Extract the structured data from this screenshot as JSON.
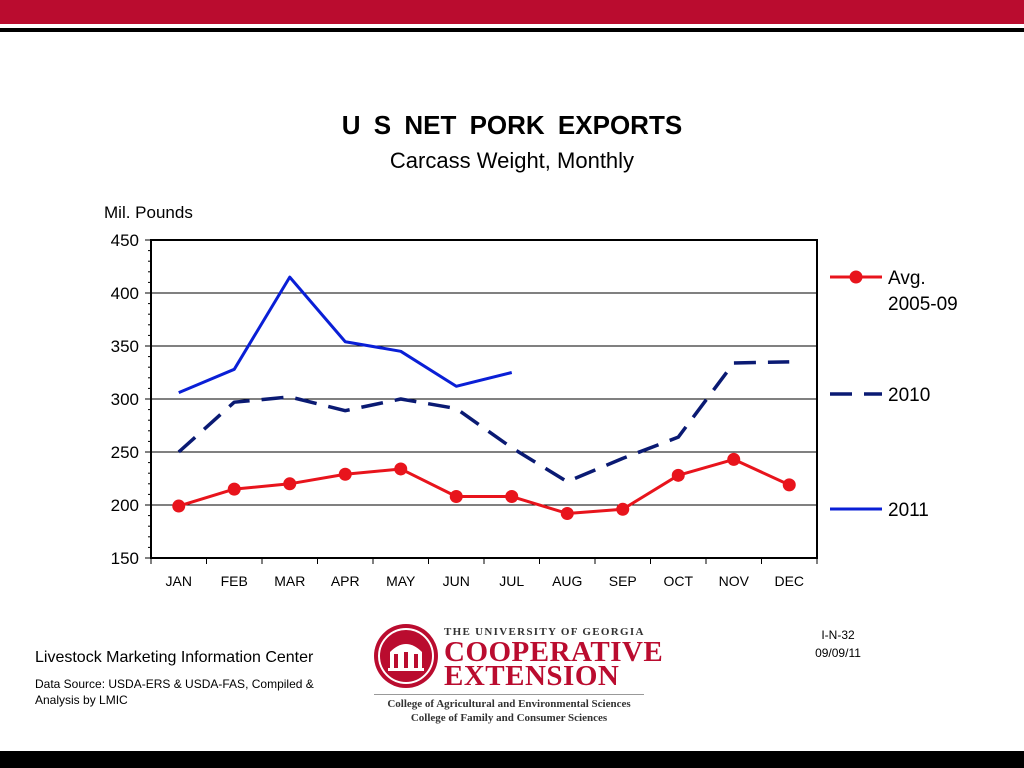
{
  "chart_data": {
    "type": "line",
    "title": "U S  NET  PORK  EXPORTS",
    "subtitle": "Carcass Weight, Monthly",
    "ylabel": "Mil. Pounds",
    "ylim": [
      150,
      450
    ],
    "yticks": [
      "150",
      "200",
      "250",
      "300",
      "350",
      "400",
      "450"
    ],
    "categories": [
      "JAN",
      "FEB",
      "MAR",
      "APR",
      "MAY",
      "JUN",
      "JUL",
      "AUG",
      "SEP",
      "OCT",
      "NOV",
      "DEC"
    ],
    "grid": true,
    "legend_position": "right",
    "series": [
      {
        "name": "Avg. 2005-09",
        "legend_lines": [
          "Avg.",
          "2005-09"
        ],
        "color": "#e8141c",
        "style": "solid-markers",
        "values": [
          199,
          215,
          220,
          229,
          234,
          208,
          208,
          192,
          196,
          228,
          243,
          219
        ]
      },
      {
        "name": "2010",
        "legend_lines": [
          "2010"
        ],
        "color": "#0a1a73",
        "style": "dashed",
        "values": [
          250,
          297,
          302,
          289,
          300,
          291,
          254,
          222,
          244,
          264,
          334,
          335
        ]
      },
      {
        "name": "2011",
        "legend_lines": [
          "2011"
        ],
        "color": "#0a1fd6",
        "style": "solid",
        "values": [
          306,
          328,
          415,
          354,
          345,
          312,
          325,
          null,
          null,
          null,
          null,
          null
        ]
      }
    ]
  },
  "footer": {
    "org": "Livestock Marketing Information Center",
    "source": "Data Source:  USDA-ERS & USDA-FAS, Compiled & Analysis by LMIC",
    "code": "I-N-32",
    "date": "09/09/11"
  },
  "logo": {
    "university": "THE UNIVERSITY OF GEORGIA",
    "line1": "COOPERATIVE",
    "line2": "EXTENSION",
    "college1": "College of Agricultural and Environmental Sciences",
    "college2": "College of Family and Consumer Sciences"
  },
  "colors": {
    "accent": "#ba0c2f"
  }
}
